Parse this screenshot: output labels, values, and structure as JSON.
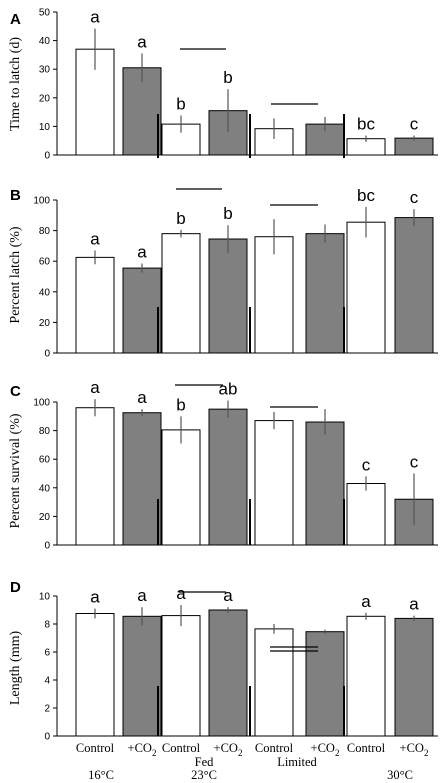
{
  "x_categories": [
    "Control",
    "+CO2",
    "Control",
    "+CO2",
    "Control",
    "+CO2",
    "Control",
    "+CO2"
  ],
  "treatments": [
    "Fed",
    "Limited"
  ],
  "temperatures": [
    "16°C",
    "23°C",
    "30°C"
  ],
  "colors": {
    "control": "#ffffff",
    "co2": "#808080",
    "outline": "#000000",
    "errorbar": "#555555"
  },
  "chart_data": [
    {
      "type": "bar",
      "panel": "A",
      "ylabel": "Time to latch (d)",
      "ylim": [
        0,
        50
      ],
      "yticks": [
        0,
        10,
        20,
        30,
        40,
        50
      ],
      "categories": [
        "Control",
        "+CO2",
        "Control",
        "+CO2",
        "Control",
        "+CO2",
        "Control",
        "+CO2"
      ],
      "values": [
        37,
        30.5,
        10.8,
        15.5,
        9.2,
        10.8,
        5.7,
        5.9
      ],
      "errors": [
        7.2,
        5,
        3,
        7.5,
        3.6,
        2.5,
        1.1,
        0.9
      ],
      "significance": [
        "a",
        "a",
        "b",
        "b",
        "",
        "",
        "bc",
        "c"
      ]
    },
    {
      "type": "bar",
      "panel": "B",
      "ylabel": "Percent latch (%)",
      "ylim": [
        0,
        100
      ],
      "yticks": [
        0,
        20,
        40,
        60,
        80,
        100
      ],
      "categories": [
        "Control",
        "+CO2",
        "Control",
        "+CO2",
        "Control",
        "+CO2",
        "Control",
        "+CO2"
      ],
      "values": [
        62.5,
        55.5,
        78,
        74.5,
        76,
        78,
        85.5,
        88.5
      ],
      "errors": [
        4.5,
        3,
        2.5,
        9,
        11.5,
        6,
        10,
        5.5
      ],
      "significance": [
        "a",
        "a",
        "b",
        "b",
        "",
        "",
        "bc",
        "c"
      ]
    },
    {
      "type": "bar",
      "panel": "C",
      "ylabel": "Percent survival (%)",
      "ylim": [
        0,
        100
      ],
      "yticks": [
        0,
        20,
        40,
        60,
        80,
        100
      ],
      "categories": [
        "Control",
        "+CO2",
        "Control",
        "+CO2",
        "Control",
        "+CO2",
        "Control",
        "+CO2"
      ],
      "values": [
        96,
        92.5,
        80.5,
        95,
        87,
        86,
        43,
        32
      ],
      "errors": [
        6,
        2.5,
        9.5,
        6,
        6,
        9,
        5,
        18
      ],
      "significance": [
        "a",
        "a",
        "b",
        "ab",
        "",
        "",
        "c",
        "c"
      ]
    },
    {
      "type": "bar",
      "panel": "D",
      "ylabel": "Length (mm)",
      "ylim": [
        0,
        10
      ],
      "yticks": [
        0,
        2,
        4,
        6,
        8,
        10
      ],
      "categories": [
        "Control",
        "+CO2",
        "Control",
        "+CO2",
        "Control",
        "+CO2",
        "Control",
        "+CO2"
      ],
      "values": [
        8.75,
        8.55,
        8.6,
        9.0,
        7.65,
        7.45,
        8.55,
        8.4
      ],
      "errors": [
        0.35,
        0.65,
        0.75,
        0.2,
        0.35,
        0.15,
        0.25,
        0.2
      ],
      "significance": [
        "a",
        "a",
        "a",
        "a",
        "",
        "",
        "a",
        "a"
      ]
    }
  ]
}
